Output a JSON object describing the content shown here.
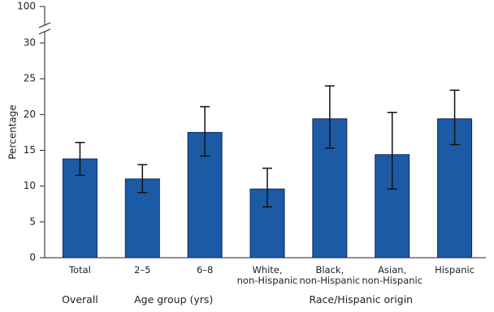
{
  "chart_data": {
    "type": "bar",
    "y_label": "Percentage",
    "categories": [
      "Total",
      "2–5",
      "6–8",
      "White,\nnon-Hispanic",
      "Black,\nnon-Hispanic",
      "Asian,\nnon-Hispanic",
      "Hispanic"
    ],
    "category_groups": [
      "Overall",
      "Age group (yrs)",
      "Age group (yrs)",
      "Race/Hispanic origin",
      "Race/Hispanic origin",
      "Race/Hispanic origin",
      "Race/Hispanic origin"
    ],
    "series": [
      {
        "color": "#1d5aa6",
        "values": [
          13.8,
          11.0,
          17.5,
          9.6,
          19.4,
          14.4,
          19.4
        ],
        "ci_low": [
          11.5,
          9.1,
          14.2,
          7.1,
          15.3,
          9.6,
          15.8
        ],
        "ci_high": [
          16.1,
          13.0,
          21.1,
          12.5,
          24.0,
          20.3,
          23.4
        ]
      }
    ],
    "ylim": [
      0,
      30
    ],
    "yticks": [
      0,
      5,
      10,
      15,
      20,
      25,
      30
    ],
    "y_break_tick": 100
  }
}
